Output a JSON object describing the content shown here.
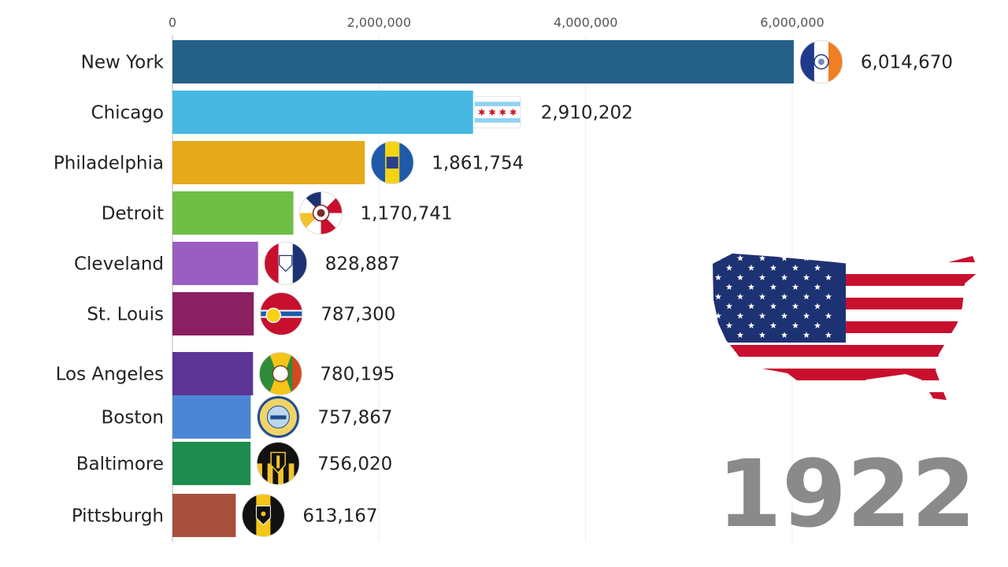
{
  "chart_data": {
    "type": "bar",
    "orientation": "horizontal",
    "year": "1922",
    "x_ticks": [
      0,
      2000000,
      4000000,
      6000000
    ],
    "x_tick_labels": [
      "0",
      "2,000,000",
      "4,000,000",
      "6,000,000"
    ],
    "xlim": [
      0,
      6000000
    ],
    "grid": true,
    "categories": [
      "New York",
      "Chicago",
      "Philadelphia",
      "Detroit",
      "Cleveland",
      "St. Louis",
      "Los Angeles",
      "Boston",
      "Baltimore",
      "Pittsburgh"
    ],
    "values": [
      6014670,
      2910202,
      1861754,
      1170741,
      828887,
      787300,
      780195,
      757867,
      756020,
      613167
    ],
    "value_labels": [
      "6,014,670",
      "2,910,202",
      "1,861,754",
      "1,170,741",
      "828,887",
      "787,300",
      "780,195",
      "757,867",
      "756,020",
      "613,167"
    ],
    "bar_colors": [
      "#256088",
      "#47b8e2",
      "#e6a91a",
      "#6fbe46",
      "#9a5ec2",
      "#8a1f62",
      "#5c3595",
      "#4b86d4",
      "#1e8c4e",
      "#a85040"
    ],
    "icons": [
      "new-york-flag-icon",
      "chicago-flag-icon",
      "philadelphia-flag-icon",
      "detroit-flag-icon",
      "cleveland-flag-icon",
      "st-louis-flag-icon",
      "los-angeles-flag-icon",
      "boston-seal-icon",
      "baltimore-flag-icon",
      "pittsburgh-flag-icon"
    ],
    "decoration": "usa-flag-map-icon"
  }
}
